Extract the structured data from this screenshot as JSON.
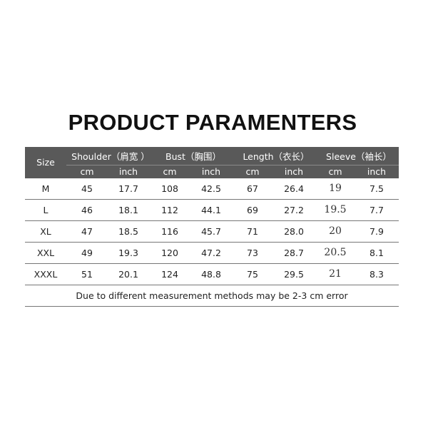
{
  "title": "PRODUCT PARAMENTERS",
  "header": {
    "size": "Size",
    "groups": [
      "Shoulder（肩宽 ）",
      "Bust（胸围）",
      "Length（衣长）",
      "Sleeve（袖长）"
    ],
    "units": [
      "cm",
      "inch",
      "cm",
      "inch",
      "cm",
      "inch",
      "cm",
      "inch"
    ]
  },
  "rows": [
    {
      "size": "M",
      "values": [
        "45",
        "17.7",
        "108",
        "42.5",
        "67",
        "26.4",
        "19",
        "7.5"
      ]
    },
    {
      "size": "L",
      "values": [
        "46",
        "18.1",
        "112",
        "44.1",
        "69",
        "27.2",
        "19.5",
        "7.7"
      ]
    },
    {
      "size": "XL",
      "values": [
        "47",
        "18.5",
        "116",
        "45.7",
        "71",
        "28.0",
        "20",
        "7.9"
      ]
    },
    {
      "size": "XXL",
      "values": [
        "49",
        "19.3",
        "120",
        "47.2",
        "73",
        "28.7",
        "20.5",
        "8.1"
      ]
    },
    {
      "size": "XXXL",
      "values": [
        "51",
        "20.1",
        "124",
        "48.8",
        "75",
        "29.5",
        "21",
        "8.3"
      ]
    }
  ],
  "note": "Due to different measurement methods may be 2-3 cm error",
  "colors": {
    "header_bg": "#595959",
    "header_text": "#ffffff"
  }
}
